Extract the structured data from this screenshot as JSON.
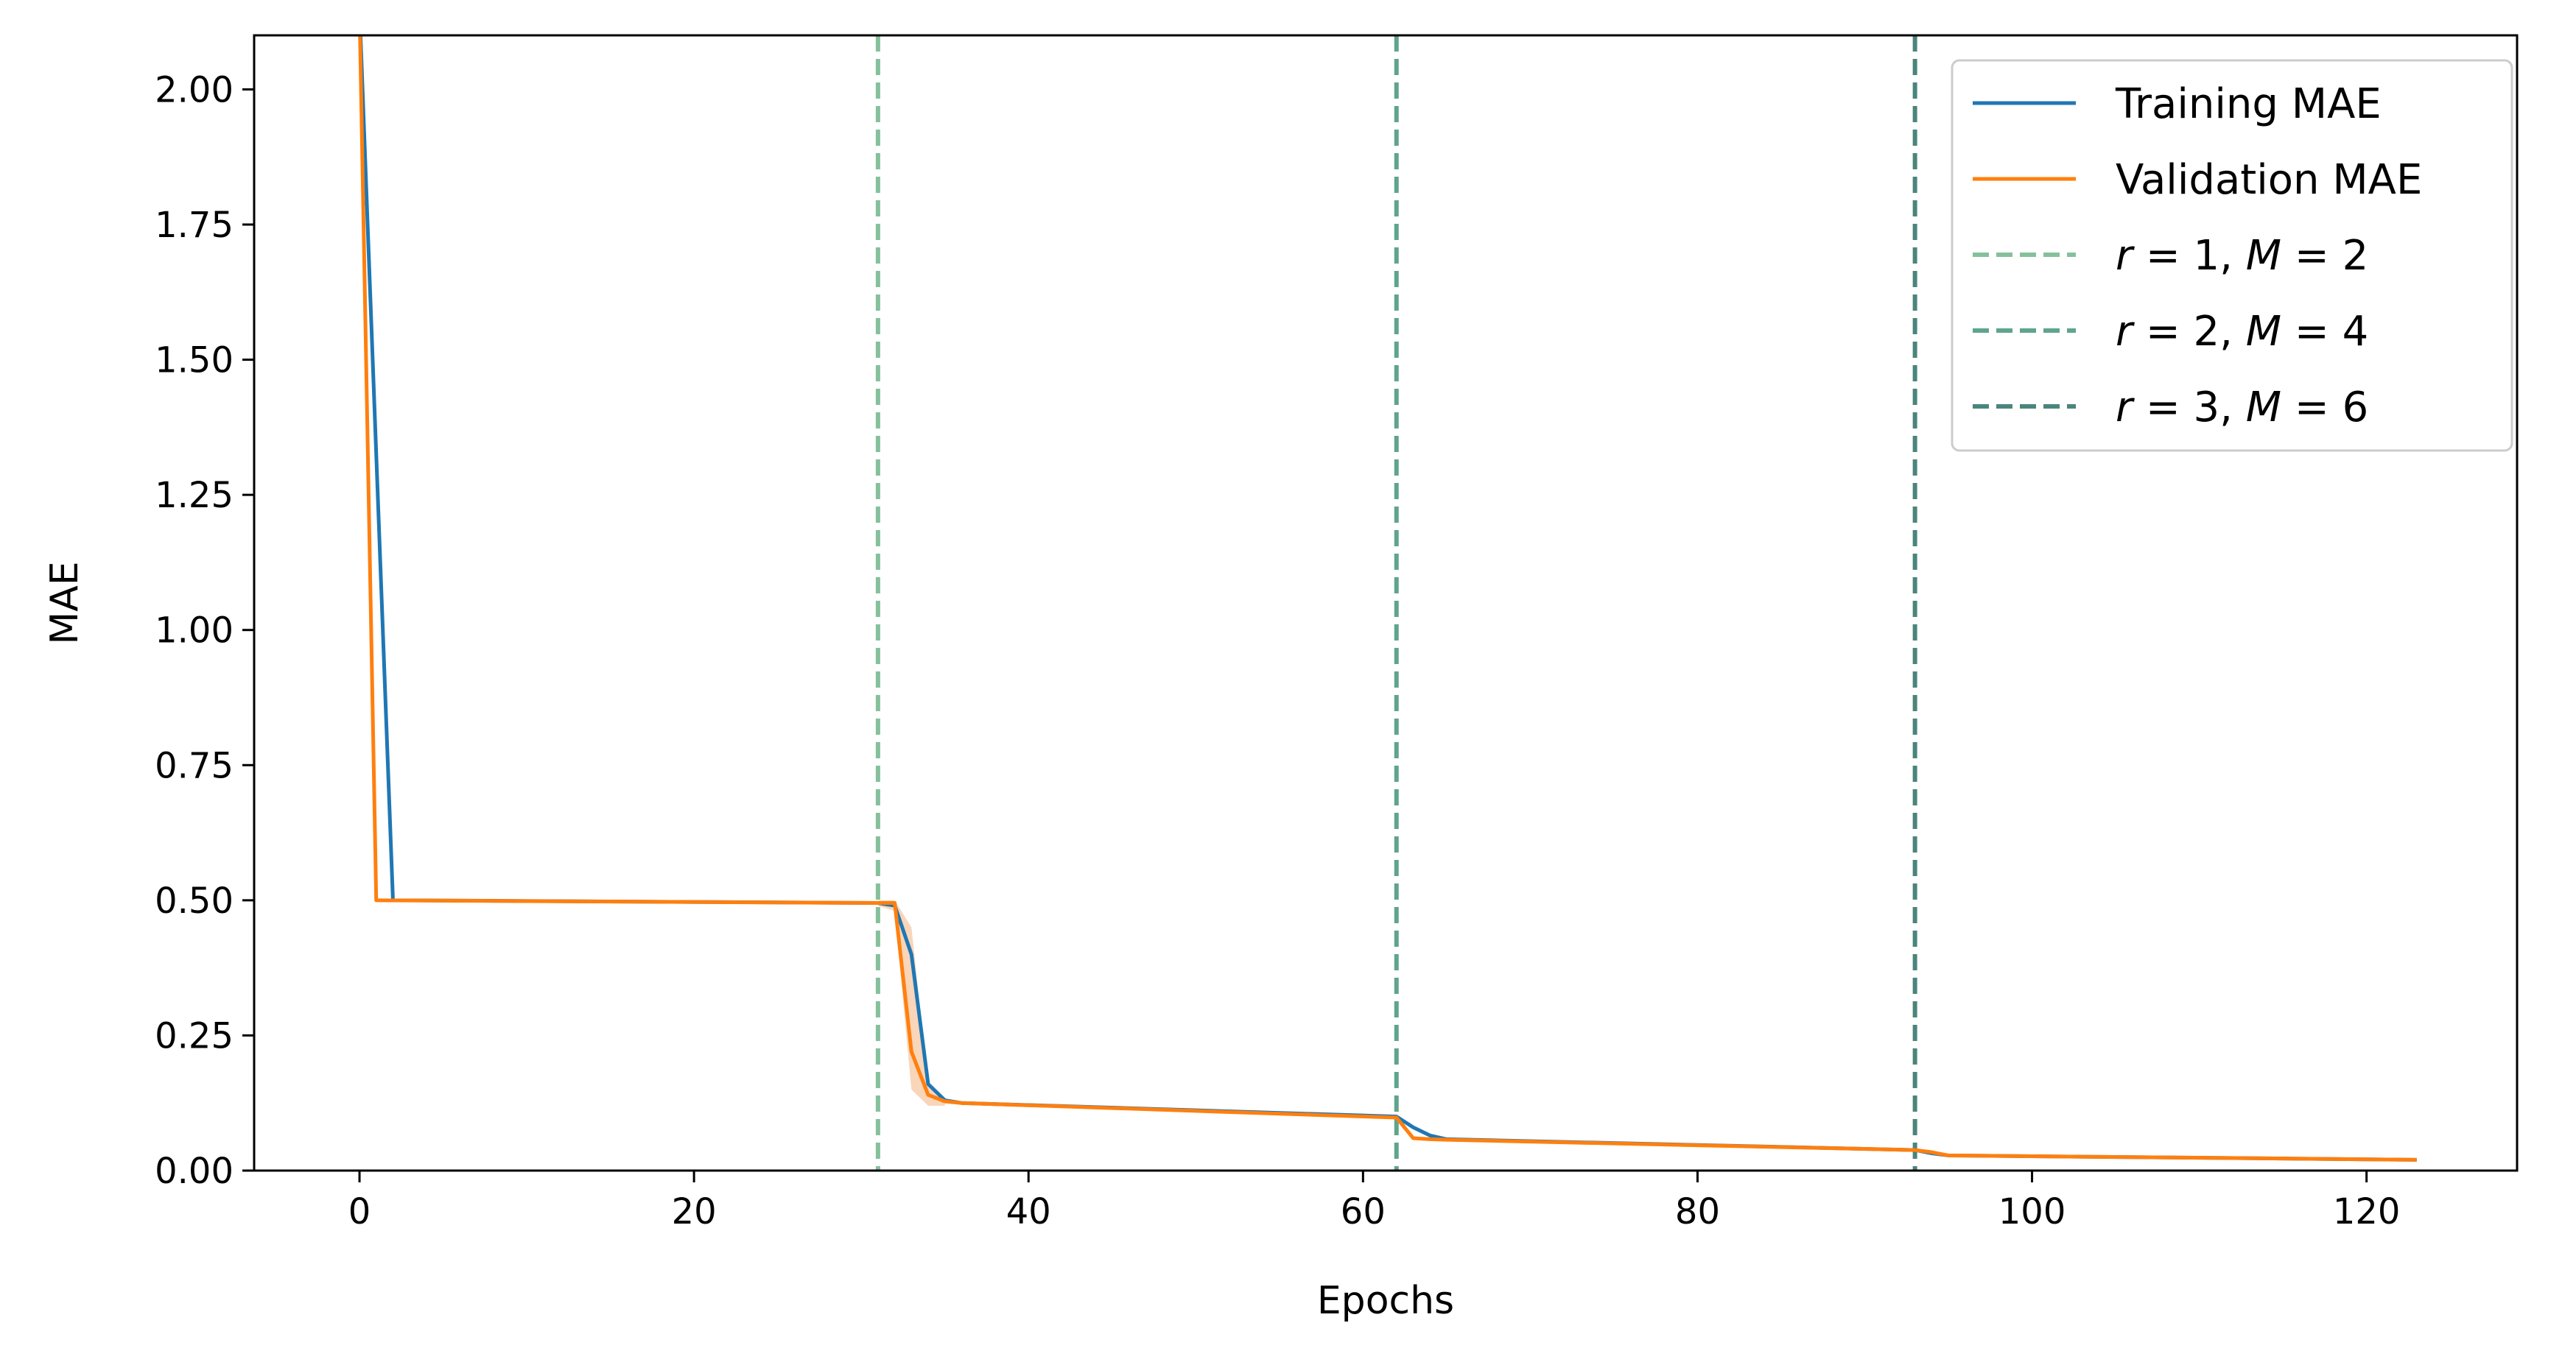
{
  "chart_data": {
    "type": "line",
    "xlabel": "Epochs",
    "ylabel": "MAE",
    "xlim": [
      -6.3,
      129
    ],
    "ylim": [
      0,
      2.1
    ],
    "x_ticks": [
      0,
      20,
      40,
      60,
      80,
      100,
      120
    ],
    "x_tick_labels": [
      "0",
      "20",
      "40",
      "60",
      "80",
      "100",
      "120"
    ],
    "y_ticks": [
      0,
      0.25,
      0.5,
      0.75,
      1.0,
      1.25,
      1.5,
      1.75,
      2.0
    ],
    "y_tick_labels": [
      "0.00",
      "0.25",
      "0.50",
      "0.75",
      "1.00",
      "1.25",
      "1.50",
      "1.75",
      "2.00"
    ],
    "grid": false,
    "legend_position": "top-right",
    "series": [
      {
        "name": "Training MAE",
        "color": "#1f77b4",
        "x": [
          0,
          2,
          31,
          32,
          33,
          34,
          35,
          36,
          62,
          63,
          64,
          65,
          93,
          94,
          95,
          123
        ],
        "y": [
          2.15,
          0.5,
          0.495,
          0.49,
          0.4,
          0.16,
          0.13,
          0.125,
          0.1,
          0.08,
          0.065,
          0.058,
          0.038,
          0.032,
          0.028,
          0.02
        ]
      },
      {
        "name": "Validation MAE",
        "color": "#ff7f0e",
        "band_color": "#f5b98a",
        "x": [
          0,
          1,
          31,
          32,
          33,
          34,
          35,
          36,
          62,
          63,
          64,
          65,
          93,
          94,
          95,
          123
        ],
        "y": [
          2.15,
          0.5,
          0.495,
          0.495,
          0.22,
          0.14,
          0.128,
          0.125,
          0.098,
          0.06,
          0.058,
          0.057,
          0.038,
          0.034,
          0.028,
          0.02
        ],
        "band": {
          "x": [
            31,
            32,
            33,
            34,
            35
          ],
          "lower": [
            0.49,
            0.48,
            0.15,
            0.12,
            0.12
          ],
          "upper": [
            0.5,
            0.5,
            0.45,
            0.16,
            0.13
          ]
        }
      }
    ],
    "vlines": [
      {
        "x": 31,
        "color": "#86c09b",
        "label_parts": [
          [
            "r",
            "it"
          ],
          [
            " = 1,  ",
            ""
          ],
          [
            "M",
            "it"
          ],
          [
            " = 2",
            ""
          ]
        ]
      },
      {
        "x": 62,
        "color": "#5fa58b",
        "label_parts": [
          [
            "r",
            "it"
          ],
          [
            " = 2,  ",
            ""
          ],
          [
            "M",
            "it"
          ],
          [
            " = 4",
            ""
          ]
        ]
      },
      {
        "x": 93,
        "color": "#4a857d",
        "label_parts": [
          [
            "r",
            "it"
          ],
          [
            " = 3,  ",
            ""
          ],
          [
            "M",
            "it"
          ],
          [
            " = 6",
            ""
          ]
        ]
      }
    ]
  }
}
